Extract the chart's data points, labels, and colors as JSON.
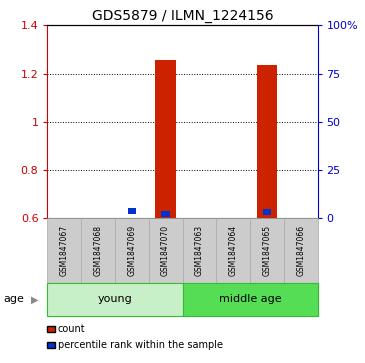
{
  "title": "GDS5879 / ILMN_1224156",
  "samples": [
    "GSM1847067",
    "GSM1847068",
    "GSM1847069",
    "GSM1847070",
    "GSM1847063",
    "GSM1847064",
    "GSM1847065",
    "GSM1847066"
  ],
  "count_values": [
    0.0,
    0.0,
    0.0,
    1.255,
    0.0,
    0.0,
    1.235,
    0.0
  ],
  "percentile_values": [
    0.0,
    0.0,
    0.615,
    0.605,
    0.0,
    0.0,
    0.61,
    0.0
  ],
  "ylim": [
    0.6,
    1.4
  ],
  "yticks_left": [
    0.6,
    0.8,
    1.0,
    1.2,
    1.4
  ],
  "ytick_left_labels": [
    "0.6",
    "0.8",
    "1",
    "1.2",
    "1.4"
  ],
  "yticks_right": [
    0,
    25,
    50,
    75,
    100
  ],
  "ytick_right_labels": [
    "0",
    "25",
    "50",
    "75",
    "100%"
  ],
  "left_axis_color": "#cc0000",
  "right_axis_color": "#0000cc",
  "bar_color_red": "#cc2200",
  "bar_color_blue": "#0033cc",
  "group_colors": [
    "#c8f0c8",
    "#55dd55"
  ],
  "group_edge_color": "#33bb33",
  "sample_box_color": "#cccccc",
  "sample_box_edge_color": "#aaaaaa",
  "groups": [
    {
      "label": "young",
      "start": 0,
      "end": 4
    },
    {
      "label": "middle age",
      "start": 4,
      "end": 8
    }
  ],
  "legend_red_label": "count",
  "legend_blue_label": "percentile rank within the sample",
  "age_label": "age",
  "figsize": [
    3.65,
    3.63
  ],
  "dpi": 100
}
